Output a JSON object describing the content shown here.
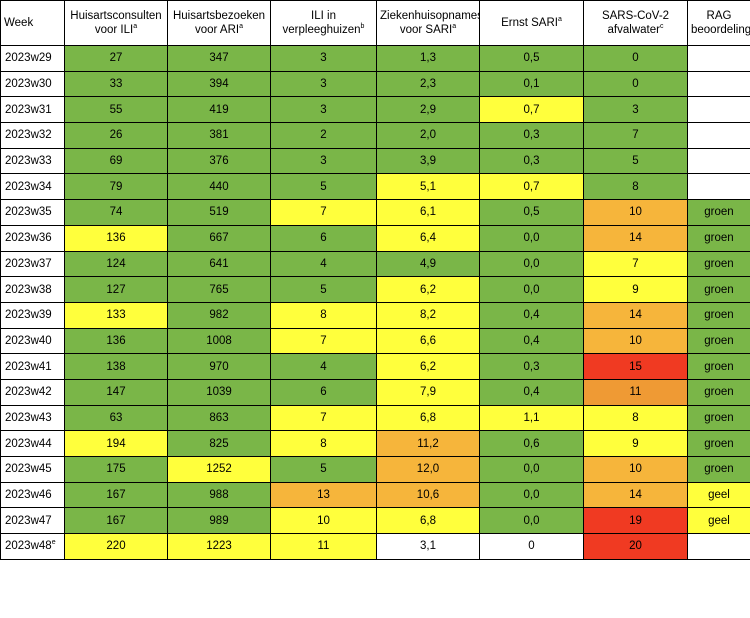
{
  "headers": [
    {
      "text": "Week",
      "sup": ""
    },
    {
      "text": "Huisartsconsulten voor ILI",
      "sup": "a"
    },
    {
      "text": "Huisartsbezoeken voor ARI",
      "sup": "a"
    },
    {
      "text": "ILI in verpleeghuizen",
      "sup": "b"
    },
    {
      "text": "Ziekenhuisopnames voor SARI",
      "sup": "a"
    },
    {
      "text": "Ernst SARI",
      "sup": "a"
    },
    {
      "text": "SARS-CoV-2 afvalwater",
      "sup": "c"
    },
    {
      "text": "RAG beoordeling",
      "sup": ""
    }
  ],
  "color_legend": {
    "green": "#7ab648",
    "yellow": "#ffff3c",
    "light_orange": "#f6b53b",
    "orange": "#ef9a34",
    "red": "#f03a22",
    "white": "#ffffff"
  },
  "rows": [
    {
      "week": "2023w29",
      "week_sup": "",
      "cells": [
        {
          "v": "27",
          "c": "green"
        },
        {
          "v": "347",
          "c": "green"
        },
        {
          "v": "3",
          "c": "green"
        },
        {
          "v": "1,3",
          "c": "green"
        },
        {
          "v": "0,5",
          "c": "green"
        },
        {
          "v": "0",
          "c": "green"
        },
        {
          "v": "",
          "c": "white"
        }
      ]
    },
    {
      "week": "2023w30",
      "week_sup": "",
      "cells": [
        {
          "v": "33",
          "c": "green"
        },
        {
          "v": "394",
          "c": "green"
        },
        {
          "v": "3",
          "c": "green"
        },
        {
          "v": "2,3",
          "c": "green"
        },
        {
          "v": "0,1",
          "c": "green"
        },
        {
          "v": "0",
          "c": "green"
        },
        {
          "v": "",
          "c": "white"
        }
      ]
    },
    {
      "week": "2023w31",
      "week_sup": "",
      "cells": [
        {
          "v": "55",
          "c": "green"
        },
        {
          "v": "419",
          "c": "green"
        },
        {
          "v": "3",
          "c": "green"
        },
        {
          "v": "2,9",
          "c": "green"
        },
        {
          "v": "0,7",
          "c": "yellow"
        },
        {
          "v": "3",
          "c": "green"
        },
        {
          "v": "",
          "c": "white"
        }
      ]
    },
    {
      "week": "2023w32",
      "week_sup": "",
      "cells": [
        {
          "v": "26",
          "c": "green"
        },
        {
          "v": "381",
          "c": "green"
        },
        {
          "v": "2",
          "c": "green"
        },
        {
          "v": "2,0",
          "c": "green"
        },
        {
          "v": "0,3",
          "c": "green"
        },
        {
          "v": "7",
          "c": "green"
        },
        {
          "v": "",
          "c": "white"
        }
      ]
    },
    {
      "week": "2023w33",
      "week_sup": "",
      "cells": [
        {
          "v": "69",
          "c": "green"
        },
        {
          "v": "376",
          "c": "green"
        },
        {
          "v": "3",
          "c": "green"
        },
        {
          "v": "3,9",
          "c": "green"
        },
        {
          "v": "0,3",
          "c": "green"
        },
        {
          "v": "5",
          "c": "green"
        },
        {
          "v": "",
          "c": "white"
        }
      ]
    },
    {
      "week": "2023w34",
      "week_sup": "",
      "cells": [
        {
          "v": "79",
          "c": "green"
        },
        {
          "v": "440",
          "c": "green"
        },
        {
          "v": "5",
          "c": "green"
        },
        {
          "v": "5,1",
          "c": "yellow"
        },
        {
          "v": "0,7",
          "c": "yellow"
        },
        {
          "v": "8",
          "c": "green"
        },
        {
          "v": "",
          "c": "white"
        }
      ]
    },
    {
      "week": "2023w35",
      "week_sup": "",
      "cells": [
        {
          "v": "74",
          "c": "green"
        },
        {
          "v": "519",
          "c": "green"
        },
        {
          "v": "7",
          "c": "yellow"
        },
        {
          "v": "6,1",
          "c": "yellow"
        },
        {
          "v": "0,5",
          "c": "green"
        },
        {
          "v": "10",
          "c": "light_orange"
        },
        {
          "v": "groen",
          "c": "green"
        }
      ]
    },
    {
      "week": "2023w36",
      "week_sup": "",
      "cells": [
        {
          "v": "136",
          "c": "yellow"
        },
        {
          "v": "667",
          "c": "green"
        },
        {
          "v": "6",
          "c": "green"
        },
        {
          "v": "6,4",
          "c": "yellow"
        },
        {
          "v": "0,0",
          "c": "green"
        },
        {
          "v": "14",
          "c": "light_orange"
        },
        {
          "v": "groen",
          "c": "green"
        }
      ]
    },
    {
      "week": "2023w37",
      "week_sup": "",
      "cells": [
        {
          "v": "124",
          "c": "green"
        },
        {
          "v": "641",
          "c": "green"
        },
        {
          "v": "4",
          "c": "green"
        },
        {
          "v": "4,9",
          "c": "green"
        },
        {
          "v": "0,0",
          "c": "green"
        },
        {
          "v": "7",
          "c": "yellow"
        },
        {
          "v": "groen",
          "c": "green"
        }
      ]
    },
    {
      "week": "2023w38",
      "week_sup": "",
      "cells": [
        {
          "v": "127",
          "c": "green"
        },
        {
          "v": "765",
          "c": "green"
        },
        {
          "v": "5",
          "c": "green"
        },
        {
          "v": "6,2",
          "c": "yellow"
        },
        {
          "v": "0,0",
          "c": "green"
        },
        {
          "v": "9",
          "c": "yellow"
        },
        {
          "v": "groen",
          "c": "green"
        }
      ]
    },
    {
      "week": "2023w39",
      "week_sup": "",
      "cells": [
        {
          "v": "133",
          "c": "yellow"
        },
        {
          "v": "982",
          "c": "green"
        },
        {
          "v": "8",
          "c": "yellow"
        },
        {
          "v": "8,2",
          "c": "yellow"
        },
        {
          "v": "0,4",
          "c": "green"
        },
        {
          "v": "14",
          "c": "light_orange"
        },
        {
          "v": "groen",
          "c": "green"
        }
      ]
    },
    {
      "week": "2023w40",
      "week_sup": "",
      "cells": [
        {
          "v": "136",
          "c": "green"
        },
        {
          "v": "1008",
          "c": "green"
        },
        {
          "v": "7",
          "c": "yellow"
        },
        {
          "v": "6,6",
          "c": "yellow"
        },
        {
          "v": "0,4",
          "c": "green"
        },
        {
          "v": "10",
          "c": "light_orange"
        },
        {
          "v": "groen",
          "c": "green"
        }
      ]
    },
    {
      "week": "2023w41",
      "week_sup": "",
      "cells": [
        {
          "v": "138",
          "c": "green"
        },
        {
          "v": "970",
          "c": "green"
        },
        {
          "v": "4",
          "c": "green"
        },
        {
          "v": "6,2",
          "c": "yellow"
        },
        {
          "v": "0,3",
          "c": "green"
        },
        {
          "v": "15",
          "c": "red"
        },
        {
          "v": "groen",
          "c": "green"
        }
      ]
    },
    {
      "week": "2023w42",
      "week_sup": "",
      "cells": [
        {
          "v": "147",
          "c": "green"
        },
        {
          "v": "1039",
          "c": "green"
        },
        {
          "v": "6",
          "c": "green"
        },
        {
          "v": "7,9",
          "c": "yellow"
        },
        {
          "v": "0,4",
          "c": "green"
        },
        {
          "v": "11",
          "c": "orange"
        },
        {
          "v": "groen",
          "c": "green"
        }
      ]
    },
    {
      "week": "2023w43",
      "week_sup": "",
      "cells": [
        {
          "v": "63",
          "c": "green"
        },
        {
          "v": "863",
          "c": "green"
        },
        {
          "v": "7",
          "c": "yellow"
        },
        {
          "v": "6,8",
          "c": "yellow"
        },
        {
          "v": "1,1",
          "c": "yellow"
        },
        {
          "v": "8",
          "c": "yellow"
        },
        {
          "v": "groen",
          "c": "green"
        }
      ]
    },
    {
      "week": "2023w44",
      "week_sup": "",
      "cells": [
        {
          "v": "194",
          "c": "yellow"
        },
        {
          "v": "825",
          "c": "green"
        },
        {
          "v": "8",
          "c": "yellow"
        },
        {
          "v": "11,2",
          "c": "light_orange"
        },
        {
          "v": "0,6",
          "c": "green"
        },
        {
          "v": "9",
          "c": "yellow"
        },
        {
          "v": "groen",
          "c": "green"
        }
      ]
    },
    {
      "week": "2023w45",
      "week_sup": "",
      "cells": [
        {
          "v": "175",
          "c": "green"
        },
        {
          "v": "1252",
          "c": "yellow"
        },
        {
          "v": "5",
          "c": "green"
        },
        {
          "v": "12,0",
          "c": "light_orange"
        },
        {
          "v": "0,0",
          "c": "green"
        },
        {
          "v": "10",
          "c": "light_orange"
        },
        {
          "v": "groen",
          "c": "green"
        }
      ]
    },
    {
      "week": "2023w46",
      "week_sup": "",
      "cells": [
        {
          "v": "167",
          "c": "green"
        },
        {
          "v": "988",
          "c": "green"
        },
        {
          "v": "13",
          "c": "light_orange"
        },
        {
          "v": "10,6",
          "c": "light_orange"
        },
        {
          "v": "0,0",
          "c": "green"
        },
        {
          "v": "14",
          "c": "light_orange"
        },
        {
          "v": "geel",
          "c": "yellow"
        }
      ]
    },
    {
      "week": "2023w47",
      "week_sup": "",
      "cells": [
        {
          "v": "167",
          "c": "green"
        },
        {
          "v": "989",
          "c": "green"
        },
        {
          "v": "10",
          "c": "yellow"
        },
        {
          "v": "6,8",
          "c": "yellow"
        },
        {
          "v": "0,0",
          "c": "green"
        },
        {
          "v": "19",
          "c": "red"
        },
        {
          "v": "geel",
          "c": "yellow"
        }
      ]
    },
    {
      "week": "2023w48",
      "week_sup": "e",
      "cells": [
        {
          "v": "220",
          "c": "yellow"
        },
        {
          "v": "1223",
          "c": "yellow"
        },
        {
          "v": "11",
          "c": "yellow"
        },
        {
          "v": "3,1",
          "c": "white"
        },
        {
          "v": "0",
          "c": "white"
        },
        {
          "v": "20",
          "c": "red"
        },
        {
          "v": "",
          "c": "white"
        }
      ]
    }
  ]
}
